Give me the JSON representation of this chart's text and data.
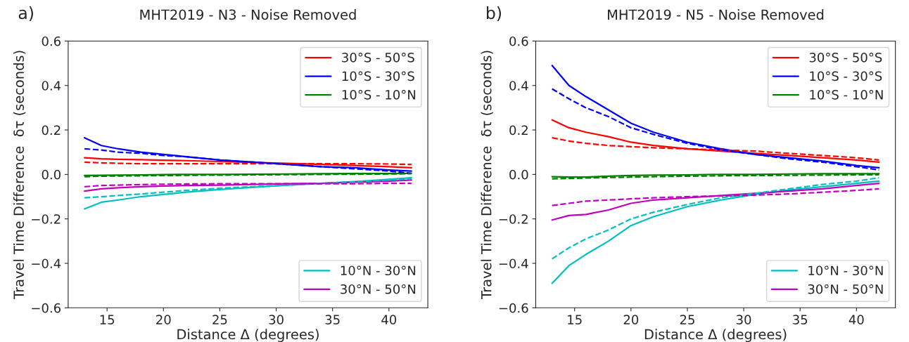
{
  "chart_data": [
    {
      "type": "line",
      "title": "MHT2019 - N3 - Noise Removed",
      "annotations": [
        "a)"
      ],
      "xlabel": "Distance Δ (degrees)",
      "ylabel": "Travel Time Difference  δτ (seconds)",
      "x": [
        13,
        14.5,
        16,
        18,
        20,
        22,
        25,
        28,
        31,
        34,
        37,
        40,
        42
      ],
      "xlim": [
        11.55,
        43.45
      ],
      "xticks": [
        15,
        20,
        25,
        30,
        35,
        40
      ],
      "ylim": [
        -0.6,
        0.6
      ],
      "yticks": [
        {
          "value": -0.6,
          "label": "−0.6"
        },
        {
          "value": -0.4,
          "label": "−0.4"
        },
        {
          "value": -0.2,
          "label": "−0.2"
        },
        {
          "value": 0,
          "label": "0.0"
        },
        0.2,
        0.4,
        0.6
      ],
      "legend": "right",
      "grid": false,
      "series": [
        {
          "name": "30°S - 50°S",
          "color": "#ff0000",
          "line_style": "solid",
          "values": [
            0.075,
            0.07,
            0.068,
            0.066,
            0.064,
            0.062,
            0.058,
            0.054,
            0.05,
            0.045,
            0.04,
            0.035,
            0.03
          ]
        },
        {
          "name": "10°S - 30°S",
          "color": "#0000ff",
          "line_style": "solid",
          "values": [
            0.165,
            0.13,
            0.115,
            0.1,
            0.09,
            0.08,
            0.065,
            0.055,
            0.045,
            0.035,
            0.03,
            0.02,
            0.015
          ]
        },
        {
          "name": "10°S - 10°N",
          "color": "#008000",
          "line_style": "solid",
          "values": [
            -0.005,
            -0.004,
            -0.003,
            -0.002,
            -0.001,
            0,
            0,
            0.001,
            0.002,
            0.003,
            0.004,
            0.004,
            0.005
          ]
        },
        {
          "name": "10°N - 30°N",
          "color": "#00bfbf",
          "line_style": "solid",
          "values": [
            -0.155,
            -0.125,
            -0.115,
            -0.1,
            -0.09,
            -0.08,
            -0.068,
            -0.058,
            -0.048,
            -0.04,
            -0.032,
            -0.022,
            -0.015
          ]
        },
        {
          "name": "30°N - 50°N",
          "color": "#bf00bf",
          "line_style": "solid",
          "values": [
            -0.075,
            -0.065,
            -0.06,
            -0.055,
            -0.052,
            -0.05,
            -0.048,
            -0.045,
            -0.042,
            -0.04,
            -0.035,
            -0.03,
            -0.025
          ]
        },
        {
          "color": "#ff0000",
          "line_style": "dashed",
          "values": [
            0.055,
            0.052,
            0.05,
            0.048,
            0.048,
            0.048,
            0.048,
            0.048,
            0.048,
            0.048,
            0.048,
            0.047,
            0.045
          ]
        },
        {
          "color": "#0000ff",
          "line_style": "dashed",
          "values": [
            0.115,
            0.11,
            0.1,
            0.095,
            0.085,
            0.08,
            0.065,
            0.055,
            0.045,
            0.035,
            0.025,
            0.015,
            0.005
          ]
        },
        {
          "color": "#008000",
          "line_style": "dashed",
          "values": [
            -0.01,
            -0.008,
            -0.007,
            -0.006,
            -0.005,
            -0.004,
            -0.003,
            -0.002,
            -0.001,
            0,
            0.001,
            0.002,
            0.003
          ]
        },
        {
          "color": "#00bfbf",
          "line_style": "dashed",
          "values": [
            -0.105,
            -0.1,
            -0.095,
            -0.088,
            -0.08,
            -0.072,
            -0.062,
            -0.055,
            -0.048,
            -0.04,
            -0.033,
            -0.025,
            -0.02
          ]
        },
        {
          "color": "#bf00bf",
          "line_style": "dashed",
          "values": [
            -0.055,
            -0.05,
            -0.048,
            -0.046,
            -0.044,
            -0.043,
            -0.042,
            -0.042,
            -0.042,
            -0.042,
            -0.042,
            -0.04,
            -0.04
          ]
        }
      ]
    },
    {
      "type": "line",
      "title": "MHT2019 - N5 - Noise Removed",
      "annotations": [
        "b)"
      ],
      "xlabel": "Distance Δ (degrees)",
      "ylabel": "Travel Time Difference  δτ (seconds)",
      "x": [
        13,
        14.5,
        16,
        18,
        20,
        22,
        25,
        28,
        31,
        34,
        37,
        40,
        42
      ],
      "xlim": [
        11.55,
        43.45
      ],
      "xticks": [
        15,
        20,
        25,
        30,
        35,
        40
      ],
      "ylim": [
        -0.6,
        0.6
      ],
      "yticks": [
        {
          "value": -0.6,
          "label": "−0.6"
        },
        {
          "value": -0.4,
          "label": "−0.4"
        },
        {
          "value": -0.2,
          "label": "−0.2"
        },
        {
          "value": 0,
          "label": "0.0"
        },
        0.2,
        0.4,
        0.6
      ],
      "legend": "right",
      "grid": false,
      "series": [
        {
          "name": "30°S - 50°S",
          "color": "#ff0000",
          "line_style": "solid",
          "values": [
            0.245,
            0.21,
            0.19,
            0.17,
            0.145,
            0.13,
            0.115,
            0.105,
            0.095,
            0.085,
            0.075,
            0.065,
            0.055
          ]
        },
        {
          "name": "10°S - 30°S",
          "color": "#0000ff",
          "line_style": "solid",
          "values": [
            0.49,
            0.4,
            0.35,
            0.29,
            0.23,
            0.19,
            0.145,
            0.115,
            0.09,
            0.075,
            0.06,
            0.04,
            0.03
          ]
        },
        {
          "name": "10°S - 10°N",
          "color": "#008000",
          "line_style": "solid",
          "values": [
            -0.01,
            -0.012,
            -0.012,
            -0.008,
            -0.005,
            -0.003,
            -0.002,
            0,
            0,
            0.002,
            0.003,
            0.003,
            0.003
          ]
        },
        {
          "name": "10°N - 30°N",
          "color": "#00bfbf",
          "line_style": "solid",
          "values": [
            -0.49,
            -0.41,
            -0.36,
            -0.3,
            -0.23,
            -0.19,
            -0.145,
            -0.115,
            -0.09,
            -0.07,
            -0.055,
            -0.04,
            -0.03
          ]
        },
        {
          "name": "30°N - 50°N",
          "color": "#bf00bf",
          "line_style": "solid",
          "values": [
            -0.205,
            -0.185,
            -0.18,
            -0.16,
            -0.13,
            -0.115,
            -0.105,
            -0.095,
            -0.085,
            -0.075,
            -0.065,
            -0.05,
            -0.04
          ]
        },
        {
          "color": "#ff0000",
          "line_style": "dashed",
          "values": [
            0.165,
            0.15,
            0.14,
            0.13,
            0.125,
            0.12,
            0.115,
            0.11,
            0.105,
            0.095,
            0.085,
            0.075,
            0.065
          ]
        },
        {
          "color": "#0000ff",
          "line_style": "dashed",
          "values": [
            0.385,
            0.34,
            0.3,
            0.26,
            0.21,
            0.18,
            0.14,
            0.11,
            0.09,
            0.07,
            0.055,
            0.035,
            0.02
          ]
        },
        {
          "color": "#008000",
          "line_style": "dashed",
          "values": [
            -0.02,
            -0.018,
            -0.016,
            -0.014,
            -0.012,
            -0.01,
            -0.008,
            -0.006,
            -0.005,
            -0.004,
            -0.003,
            -0.002,
            -0.002
          ]
        },
        {
          "color": "#00bfbf",
          "line_style": "dashed",
          "values": [
            -0.38,
            -0.33,
            -0.29,
            -0.25,
            -0.2,
            -0.17,
            -0.135,
            -0.105,
            -0.085,
            -0.065,
            -0.045,
            -0.03,
            -0.015
          ]
        },
        {
          "color": "#bf00bf",
          "line_style": "dashed",
          "values": [
            -0.14,
            -0.13,
            -0.12,
            -0.115,
            -0.11,
            -0.105,
            -0.1,
            -0.097,
            -0.093,
            -0.088,
            -0.08,
            -0.072,
            -0.065
          ]
        }
      ]
    }
  ]
}
